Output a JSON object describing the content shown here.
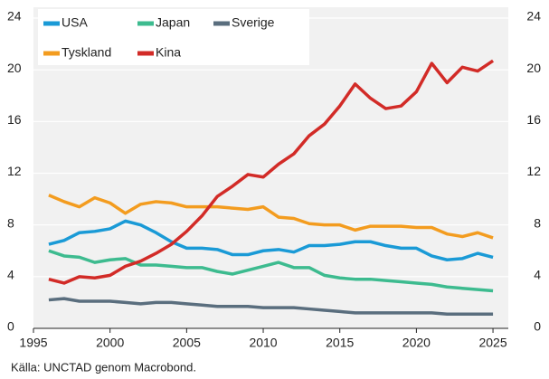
{
  "chart_data": {
    "type": "line",
    "source": "Källa: UNCTAD genom Macrobond.",
    "x": [
      1996,
      1997,
      1998,
      1999,
      2000,
      2001,
      2002,
      2003,
      2004,
      2005,
      2006,
      2007,
      2008,
      2009,
      2010,
      2011,
      2012,
      2013,
      2014,
      2015,
      2016,
      2017,
      2018,
      2019,
      2020,
      2021,
      2022,
      2023,
      2024,
      2025
    ],
    "series": [
      {
        "name": "USA",
        "color": "#1a9ad6",
        "values": [
          6.5,
          6.8,
          7.4,
          7.5,
          7.7,
          8.3,
          8.0,
          7.4,
          6.7,
          6.2,
          6.2,
          6.1,
          5.7,
          5.7,
          6.0,
          6.1,
          5.9,
          6.4,
          6.4,
          6.5,
          6.7,
          6.7,
          6.4,
          6.2,
          6.2,
          5.6,
          5.3,
          5.4,
          5.8,
          5.5
        ]
      },
      {
        "name": "Japan",
        "color": "#3dbb8f",
        "values": [
          6.0,
          5.6,
          5.5,
          5.1,
          5.3,
          5.4,
          4.9,
          4.9,
          4.8,
          4.7,
          4.7,
          4.4,
          4.2,
          4.5,
          4.8,
          5.1,
          4.7,
          4.7,
          4.1,
          3.9,
          3.8,
          3.8,
          3.7,
          3.6,
          3.5,
          3.4,
          3.2,
          3.1,
          3.0,
          2.9
        ]
      },
      {
        "name": "Sverige",
        "color": "#5a6e7e",
        "values": [
          2.2,
          2.3,
          2.1,
          2.1,
          2.1,
          2.0,
          1.9,
          2.0,
          2.0,
          1.9,
          1.8,
          1.7,
          1.7,
          1.7,
          1.6,
          1.6,
          1.6,
          1.5,
          1.4,
          1.3,
          1.2,
          1.2,
          1.2,
          1.2,
          1.2,
          1.2,
          1.1,
          1.1,
          1.1,
          1.1
        ]
      },
      {
        "name": "Tyskland",
        "color": "#f39c1f",
        "values": [
          10.3,
          9.8,
          9.4,
          10.1,
          9.7,
          8.9,
          9.6,
          9.8,
          9.7,
          9.4,
          9.4,
          9.4,
          9.3,
          9.2,
          9.4,
          8.6,
          8.5,
          8.1,
          8.0,
          8.0,
          7.6,
          7.9,
          7.9,
          7.9,
          7.8,
          7.8,
          7.3,
          7.1,
          7.4,
          7.0
        ]
      },
      {
        "name": "Kina",
        "color": "#d22b27",
        "values": [
          3.8,
          3.5,
          4.0,
          3.9,
          4.1,
          4.8,
          5.2,
          5.8,
          6.5,
          7.5,
          8.7,
          10.2,
          11.0,
          11.9,
          11.7,
          12.7,
          13.5,
          14.9,
          15.8,
          17.2,
          18.9,
          17.8,
          17.0,
          17.2,
          18.3,
          20.5,
          19.0,
          20.2,
          19.9,
          20.7
        ]
      }
    ],
    "xlim": [
      1995,
      2026
    ],
    "xticks": [
      1995,
      2000,
      2005,
      2010,
      2015,
      2020,
      2025
    ],
    "ylim": [
      0,
      24
    ],
    "yticks": [
      0,
      4,
      8,
      12,
      16,
      20,
      24
    ],
    "y2lim": [
      0,
      24
    ],
    "y2ticks": [
      0,
      4,
      8,
      12,
      16,
      20,
      24
    ],
    "grid": true
  }
}
